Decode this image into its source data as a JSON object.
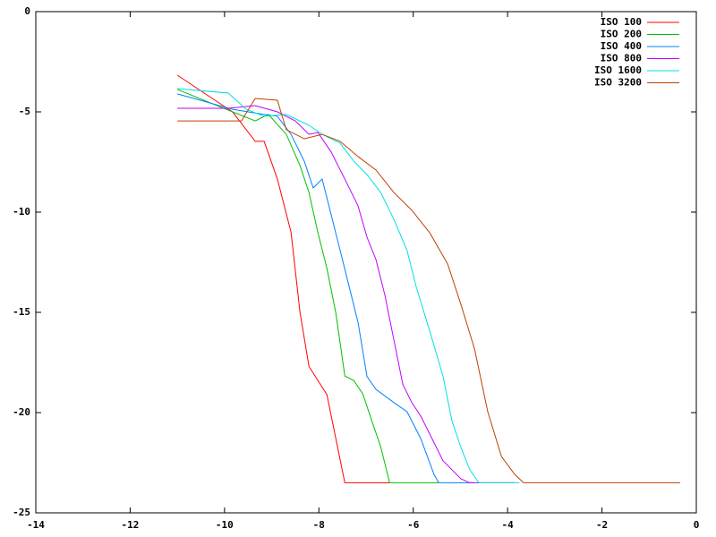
{
  "chart_data": {
    "type": "line",
    "xlim": [
      -14,
      0
    ],
    "ylim": [
      -25,
      0
    ],
    "xticks": [
      -14,
      -12,
      -10,
      -8,
      -6,
      -4,
      -2,
      0
    ],
    "yticks": [
      -25,
      -20,
      -15,
      -10,
      -5,
      0
    ],
    "grid": false,
    "legend": "top-right",
    "series": [
      {
        "name": "ISO 100",
        "color": "#ff0000",
        "x": [
          -11.0,
          -9.83,
          -9.35,
          -9.16,
          -8.88,
          -8.59,
          -8.4,
          -8.21,
          -8.02,
          -7.83,
          -7.64,
          -7.45,
          -6.5
        ],
        "values": [
          -3.17,
          -5.0,
          -6.47,
          -6.47,
          -8.35,
          -11.0,
          -15.0,
          -17.7,
          -18.4,
          -19.1,
          -21.3,
          -23.5,
          -23.5
        ]
      },
      {
        "name": "ISO 200",
        "color": "#00c000",
        "x": [
          -11.0,
          -9.83,
          -9.35,
          -9.07,
          -8.69,
          -8.4,
          -8.21,
          -8.02,
          -7.83,
          -7.64,
          -7.45,
          -7.26,
          -7.07,
          -6.88,
          -6.69,
          -6.5,
          -5.46
        ],
        "values": [
          -3.88,
          -5.0,
          -5.45,
          -5.13,
          -6.12,
          -7.68,
          -9.02,
          -11.03,
          -12.8,
          -15.04,
          -18.17,
          -18.4,
          -19.06,
          -20.4,
          -21.7,
          -23.5,
          -23.5
        ]
      },
      {
        "name": "ISO 400",
        "color": "#0080ff",
        "x": [
          -11.0,
          -9.83,
          -9.16,
          -8.88,
          -8.59,
          -8.31,
          -8.12,
          -7.93,
          -7.74,
          -7.55,
          -7.36,
          -7.17,
          -6.98,
          -6.79,
          -6.41,
          -6.13,
          -5.84,
          -5.56,
          -5.46,
          -4.7
        ],
        "values": [
          -4.1,
          -4.87,
          -5.13,
          -5.22,
          -6.12,
          -7.46,
          -8.79,
          -8.35,
          -10.13,
          -11.9,
          -13.7,
          -15.5,
          -18.2,
          -18.84,
          -19.5,
          -19.96,
          -21.3,
          -23.08,
          -23.5,
          -23.5
        ]
      },
      {
        "name": "ISO 800",
        "color": "#c000ff",
        "x": [
          -11.0,
          -9.92,
          -9.35,
          -8.88,
          -8.5,
          -8.21,
          -8.02,
          -7.74,
          -7.45,
          -7.17,
          -6.98,
          -6.79,
          -6.6,
          -6.41,
          -6.22,
          -6.03,
          -5.84,
          -5.65,
          -5.37,
          -4.99,
          -4.8,
          -3.85
        ],
        "values": [
          -4.82,
          -4.82,
          -4.69,
          -5.0,
          -5.45,
          -6.12,
          -6.03,
          -7.0,
          -8.35,
          -9.69,
          -11.25,
          -12.37,
          -14.15,
          -16.38,
          -18.6,
          -19.5,
          -20.18,
          -21.07,
          -22.4,
          -23.3,
          -23.5,
          -23.5
        ]
      },
      {
        "name": "ISO 1600",
        "color": "#00e0e0",
        "x": [
          -11.0,
          -9.92,
          -9.54,
          -9.16,
          -8.69,
          -8.21,
          -7.93,
          -7.55,
          -7.26,
          -6.98,
          -6.69,
          -6.41,
          -6.13,
          -5.94,
          -5.65,
          -5.37,
          -5.18,
          -4.99,
          -4.8,
          -4.61,
          -3.75
        ],
        "values": [
          -3.84,
          -4.06,
          -4.87,
          -5.22,
          -5.13,
          -5.67,
          -6.12,
          -6.56,
          -7.46,
          -8.13,
          -9.02,
          -10.36,
          -11.92,
          -13.7,
          -15.94,
          -18.17,
          -20.4,
          -21.74,
          -22.86,
          -23.5,
          -23.5
        ]
      },
      {
        "name": "ISO 3200",
        "color": "#c04000",
        "x": [
          -11.0,
          -9.64,
          -9.35,
          -8.88,
          -8.69,
          -8.31,
          -7.93,
          -7.55,
          -7.17,
          -6.79,
          -6.41,
          -6.03,
          -5.65,
          -5.27,
          -4.99,
          -4.7,
          -4.42,
          -4.13,
          -3.85,
          -3.66,
          -0.34
        ],
        "values": [
          -5.45,
          -5.45,
          -4.33,
          -4.42,
          -5.89,
          -6.34,
          -6.12,
          -6.47,
          -7.23,
          -7.9,
          -9.02,
          -9.91,
          -11.03,
          -12.59,
          -14.6,
          -16.83,
          -19.96,
          -22.19,
          -23.08,
          -23.5,
          -23.5
        ]
      }
    ]
  }
}
